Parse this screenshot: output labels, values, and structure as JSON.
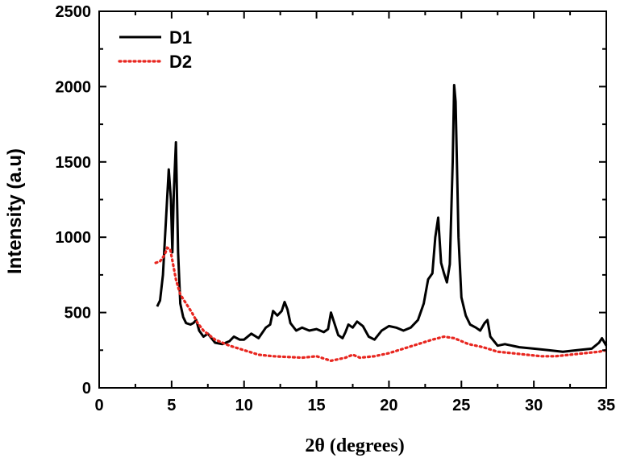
{
  "chart_data": {
    "type": "line",
    "xlabel": "2θ (degrees)",
    "ylabel": "Intensity (a.u)",
    "xlim": [
      0,
      35
    ],
    "ylim": [
      0,
      2500
    ],
    "xticks": [
      "0",
      "5",
      "10",
      "15",
      "20",
      "25",
      "30",
      "35"
    ],
    "yticks": [
      "0",
      "500",
      "1000",
      "1500",
      "2000",
      "2500"
    ],
    "grid": false,
    "legend_position": "top-left",
    "series": [
      {
        "name": "D1",
        "color": "#000000",
        "style": "solid",
        "points": [
          [
            4.0,
            540
          ],
          [
            4.2,
            580
          ],
          [
            4.4,
            750
          ],
          [
            4.6,
            1100
          ],
          [
            4.8,
            1450
          ],
          [
            4.95,
            1250
          ],
          [
            5.05,
            900
          ],
          [
            5.15,
            1300
          ],
          [
            5.3,
            1630
          ],
          [
            5.45,
            900
          ],
          [
            5.6,
            560
          ],
          [
            5.8,
            470
          ],
          [
            6.0,
            430
          ],
          [
            6.3,
            420
          ],
          [
            6.5,
            430
          ],
          [
            6.7,
            450
          ],
          [
            6.9,
            380
          ],
          [
            7.2,
            340
          ],
          [
            7.5,
            360
          ],
          [
            8.0,
            300
          ],
          [
            8.5,
            290
          ],
          [
            9.0,
            310
          ],
          [
            9.3,
            340
          ],
          [
            9.7,
            320
          ],
          [
            10.0,
            320
          ],
          [
            10.5,
            360
          ],
          [
            11.0,
            330
          ],
          [
            11.5,
            400
          ],
          [
            11.8,
            420
          ],
          [
            12.0,
            510
          ],
          [
            12.3,
            480
          ],
          [
            12.6,
            510
          ],
          [
            12.8,
            570
          ],
          [
            13.0,
            520
          ],
          [
            13.2,
            430
          ],
          [
            13.6,
            380
          ],
          [
            14.0,
            400
          ],
          [
            14.5,
            380
          ],
          [
            15.0,
            390
          ],
          [
            15.5,
            370
          ],
          [
            15.8,
            390
          ],
          [
            16.0,
            500
          ],
          [
            16.2,
            440
          ],
          [
            16.5,
            350
          ],
          [
            16.8,
            330
          ],
          [
            17.0,
            370
          ],
          [
            17.2,
            420
          ],
          [
            17.5,
            400
          ],
          [
            17.8,
            440
          ],
          [
            18.2,
            410
          ],
          [
            18.6,
            340
          ],
          [
            19.0,
            320
          ],
          [
            19.5,
            380
          ],
          [
            20.0,
            410
          ],
          [
            20.5,
            400
          ],
          [
            21.0,
            380
          ],
          [
            21.5,
            400
          ],
          [
            22.0,
            450
          ],
          [
            22.4,
            560
          ],
          [
            22.7,
            720
          ],
          [
            23.0,
            760
          ],
          [
            23.2,
            1000
          ],
          [
            23.4,
            1130
          ],
          [
            23.6,
            830
          ],
          [
            23.8,
            760
          ],
          [
            24.0,
            700
          ],
          [
            24.2,
            820
          ],
          [
            24.4,
            1500
          ],
          [
            24.5,
            2010
          ],
          [
            24.6,
            1900
          ],
          [
            24.8,
            1000
          ],
          [
            25.0,
            600
          ],
          [
            25.3,
            480
          ],
          [
            25.6,
            420
          ],
          [
            26.0,
            400
          ],
          [
            26.3,
            380
          ],
          [
            26.6,
            430
          ],
          [
            26.8,
            450
          ],
          [
            27.0,
            340
          ],
          [
            27.5,
            280
          ],
          [
            28.0,
            290
          ],
          [
            29.0,
            270
          ],
          [
            30.0,
            260
          ],
          [
            31.0,
            250
          ],
          [
            32.0,
            240
          ],
          [
            33.0,
            250
          ],
          [
            34.0,
            260
          ],
          [
            34.5,
            300
          ],
          [
            34.7,
            330
          ],
          [
            35.0,
            280
          ]
        ]
      },
      {
        "name": "D2",
        "color": "#e8261f",
        "style": "dotted",
        "points": [
          [
            3.9,
            830
          ],
          [
            4.2,
            840
          ],
          [
            4.5,
            880
          ],
          [
            4.7,
            930
          ],
          [
            4.9,
            920
          ],
          [
            5.1,
            820
          ],
          [
            5.3,
            720
          ],
          [
            5.6,
            620
          ],
          [
            6.0,
            560
          ],
          [
            6.4,
            500
          ],
          [
            6.8,
            430
          ],
          [
            7.2,
            380
          ],
          [
            7.6,
            350
          ],
          [
            8.0,
            320
          ],
          [
            9.0,
            280
          ],
          [
            10.0,
            250
          ],
          [
            11.0,
            220
          ],
          [
            12.0,
            210
          ],
          [
            13.0,
            205
          ],
          [
            14.0,
            200
          ],
          [
            15.0,
            210
          ],
          [
            16.0,
            180
          ],
          [
            17.0,
            200
          ],
          [
            17.5,
            220
          ],
          [
            18.0,
            200
          ],
          [
            19.0,
            210
          ],
          [
            20.0,
            230
          ],
          [
            21.0,
            260
          ],
          [
            22.0,
            290
          ],
          [
            23.0,
            320
          ],
          [
            23.8,
            340
          ],
          [
            24.5,
            330
          ],
          [
            25.5,
            290
          ],
          [
            26.5,
            270
          ],
          [
            27.5,
            240
          ],
          [
            28.5,
            230
          ],
          [
            29.5,
            220
          ],
          [
            30.5,
            210
          ],
          [
            31.5,
            210
          ],
          [
            32.5,
            220
          ],
          [
            33.5,
            230
          ],
          [
            34.5,
            240
          ],
          [
            35.0,
            250
          ]
        ]
      }
    ]
  }
}
